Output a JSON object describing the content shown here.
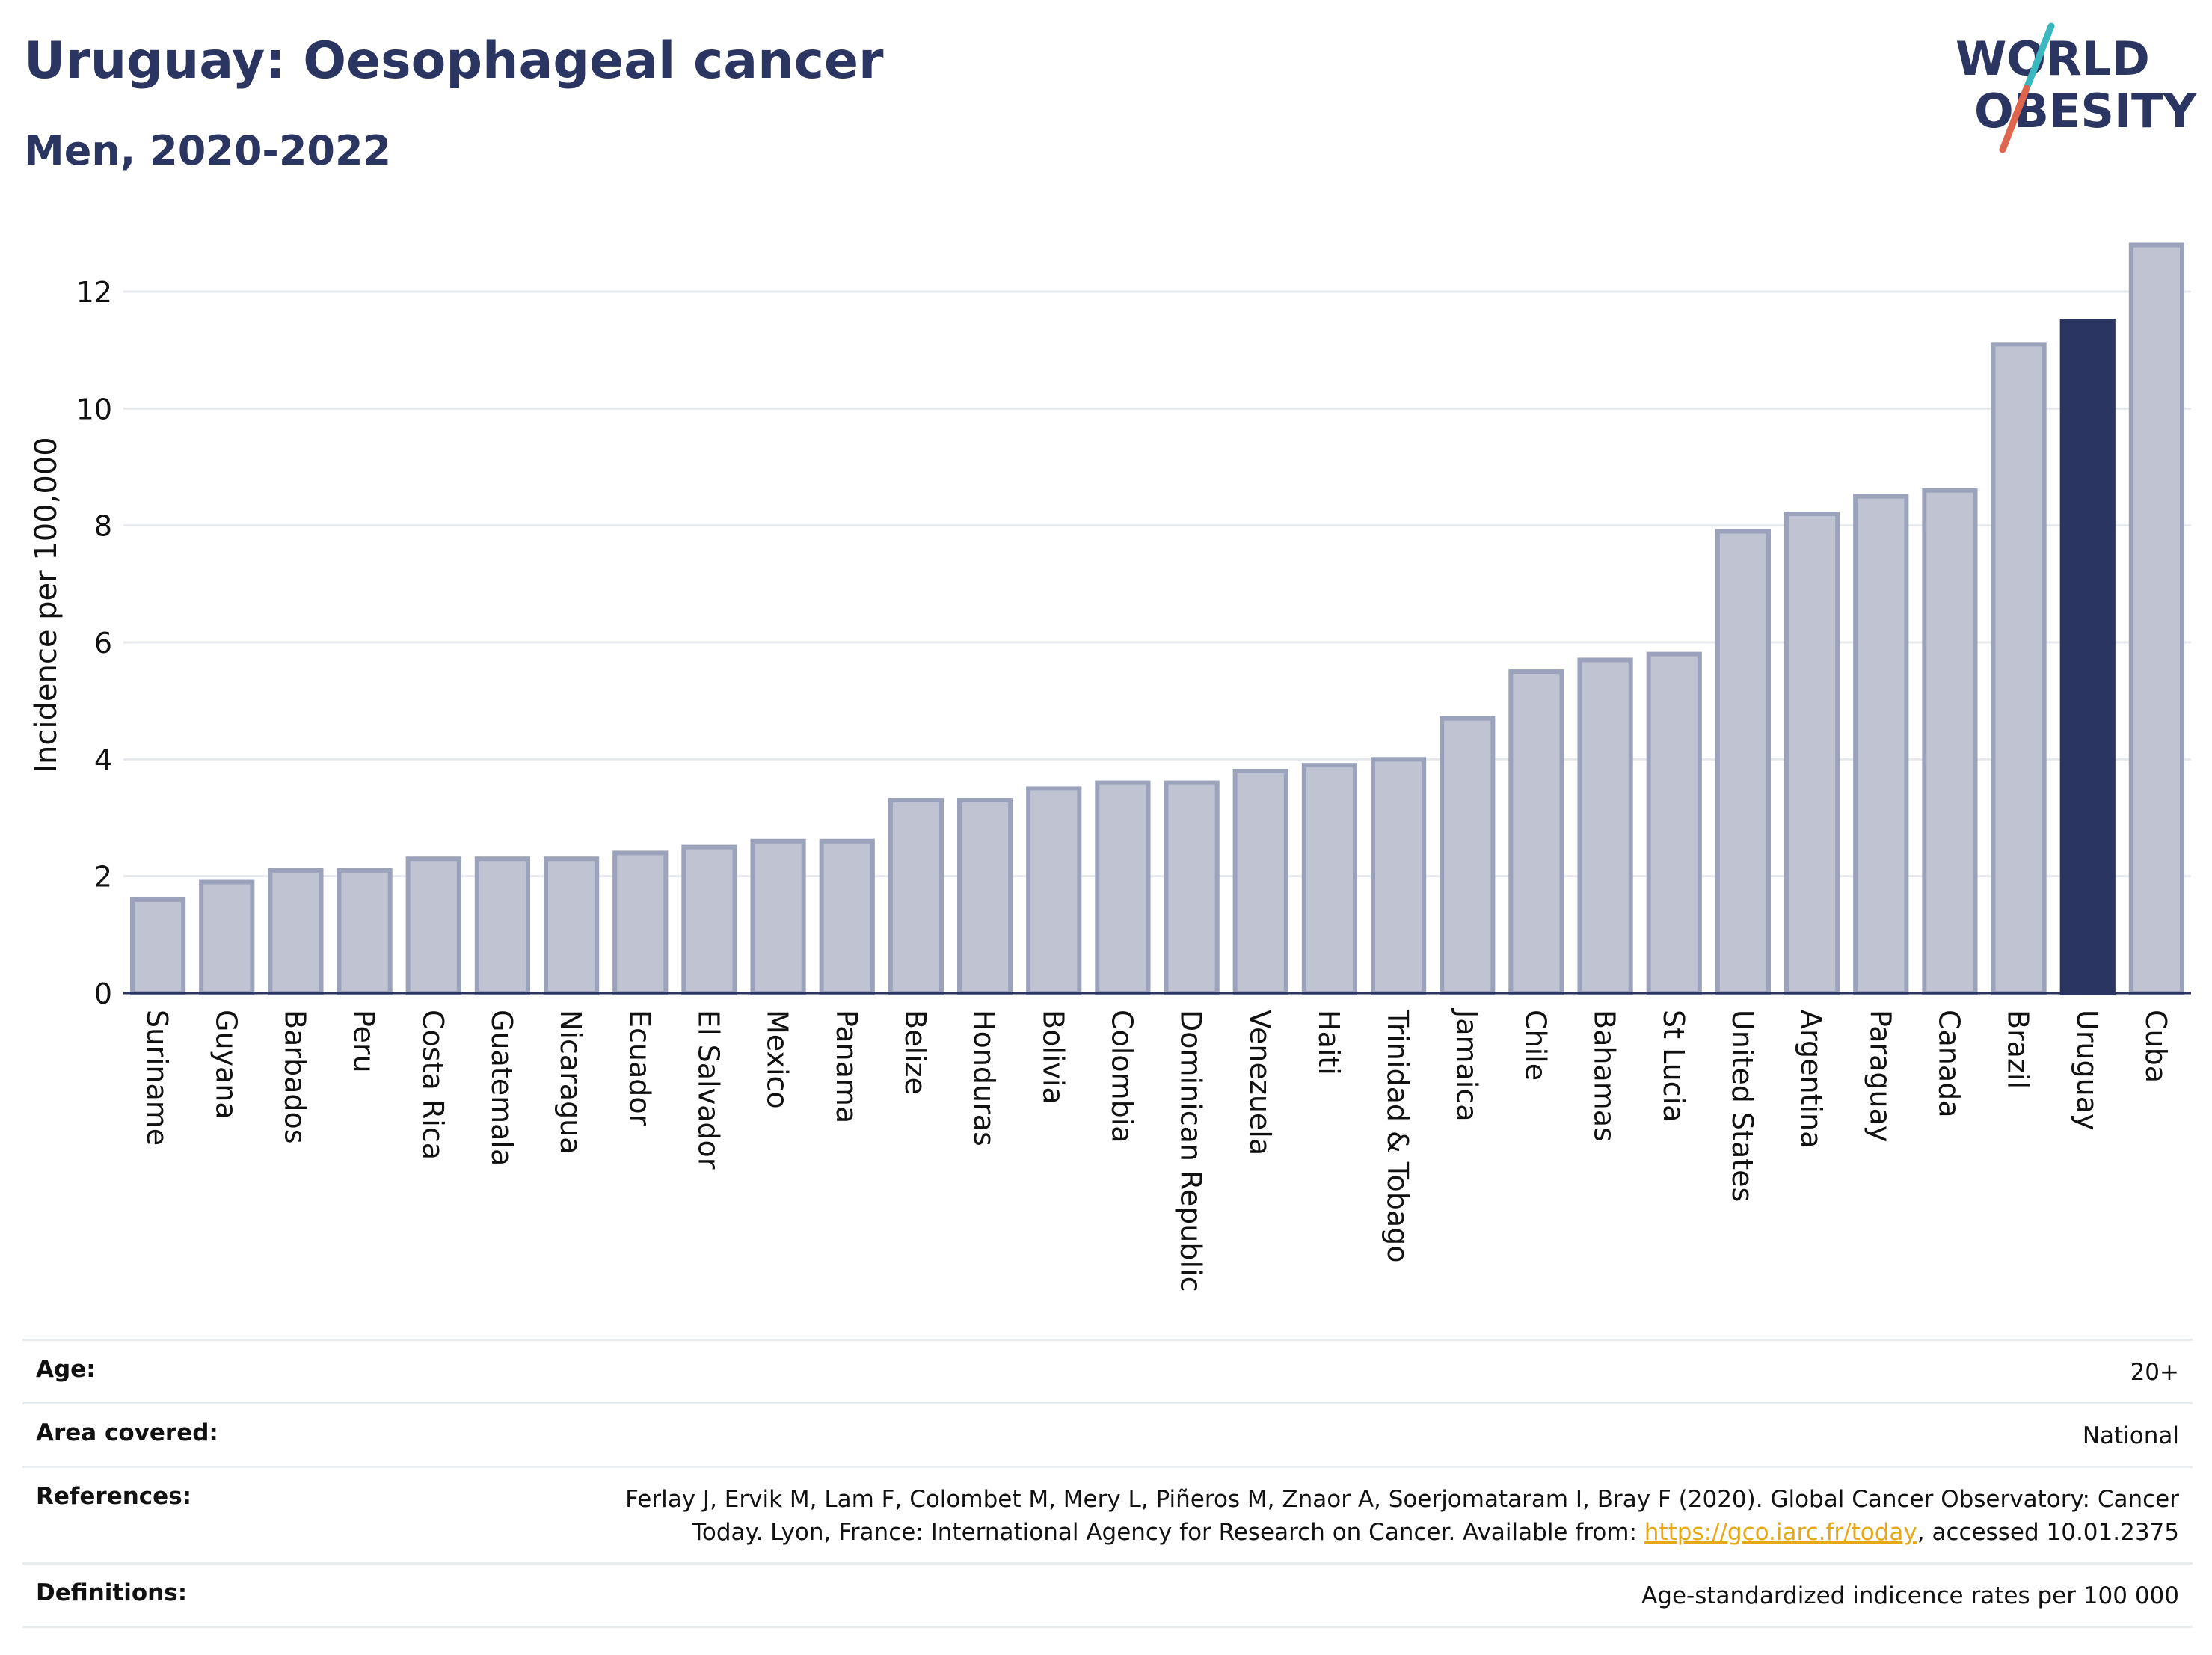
{
  "header": {
    "title": "Uruguay: Oesophageal cancer",
    "subtitle": "Men, 2020-2022"
  },
  "logo": {
    "line1": "WORLD",
    "line2": "OBESITY",
    "colors": {
      "text": "#2b3561",
      "slash_teal": "#3ab7bf",
      "slash_red": "#e0654f"
    }
  },
  "chart_data": {
    "type": "bar",
    "ylabel": "Incidence per 100,000",
    "xlabel": "",
    "ylim": [
      0,
      13
    ],
    "yticks": [
      0,
      2,
      4,
      6,
      8,
      10,
      12
    ],
    "grid": true,
    "highlight": "Uruguay",
    "colors": {
      "bar": "#bfc3d2",
      "bar_edge": "#9ba2bb",
      "highlight": "#2b3561",
      "grid": "#e6e9ee"
    },
    "categories": [
      "Suriname",
      "Guyana",
      "Barbados",
      "Peru",
      "Costa Rica",
      "Guatemala",
      "Nicaragua",
      "Ecuador",
      "El Salvador",
      "Mexico",
      "Panama",
      "Belize",
      "Honduras",
      "Bolivia",
      "Colombia",
      "Dominican Republic",
      "Venezuela",
      "Haiti",
      "Trinidad & Tobago",
      "Jamaica",
      "Chile",
      "Bahamas",
      "St Lucia",
      "United States",
      "Argentina",
      "Paraguay",
      "Canada",
      "Brazil",
      "Uruguay",
      "Cuba"
    ],
    "values": [
      1.6,
      1.9,
      2.1,
      2.1,
      2.3,
      2.3,
      2.3,
      2.4,
      2.5,
      2.6,
      2.6,
      3.3,
      3.3,
      3.5,
      3.6,
      3.6,
      3.8,
      3.9,
      4.0,
      4.7,
      5.5,
      5.7,
      5.8,
      7.9,
      8.2,
      8.5,
      8.6,
      11.1,
      11.5,
      12.8
    ]
  },
  "meta": {
    "age_label": "Age:",
    "age_value": "20+",
    "area_label": "Area covered:",
    "area_value": "National",
    "references_label": "References:",
    "references_text_1": "Ferlay J, Ervik M, Lam F, Colombet M, Mery L, Piñeros M, Znaor A, Soerjomataram I, Bray F (2020). Global Cancer Observatory: Cancer",
    "references_text_2": "Today. Lyon, France: International Agency for Research on Cancer. Available from: ",
    "references_link": "https://gco.iarc.fr/today",
    "references_text_3": ", accessed 10.01.2375",
    "definitions_label": "Definitions:",
    "definitions_value": "Age-standardized indicence rates per 100 000"
  }
}
